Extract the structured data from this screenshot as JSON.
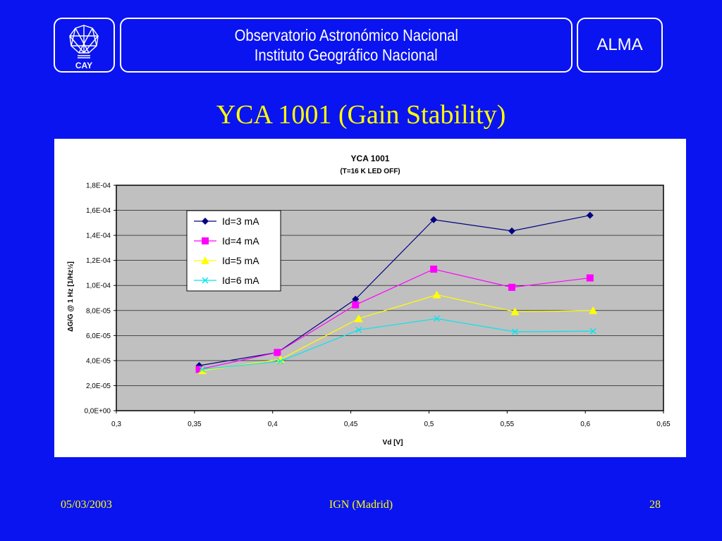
{
  "header": {
    "logo_text": "CAY",
    "line1": "Observatorio Astronómico Nacional",
    "line2": "Instituto Geográfico Nacional",
    "right_label": "ALMA"
  },
  "slide_title": "YCA 1001 (Gain Stability)",
  "footer": {
    "date": "05/03/2003",
    "center": "IGN (Madrid)",
    "page": "28"
  },
  "colors": {
    "background": "#0a14f0",
    "title": "#ffff00",
    "plot_area": "#c0c0c0"
  },
  "chart_data": {
    "type": "line",
    "title": "YCA 1001",
    "subtitle": "(T=16 K   LED OFF)",
    "xlabel": "Vd [V]",
    "ylabel": "ΔG/G @ 1 Hz [1/Hz½]",
    "xlim": [
      0.3,
      0.65
    ],
    "ylim": [
      0,
      0.00018
    ],
    "x_ticks": [
      0.3,
      0.35,
      0.4,
      0.45,
      0.5,
      0.55,
      0.6,
      0.65
    ],
    "x_tick_labels": [
      "0,3",
      "0,35",
      "0,4",
      "0,45",
      "0,5",
      "0,55",
      "0,6",
      "0,65"
    ],
    "y_ticks": [
      0,
      2e-05,
      4e-05,
      6e-05,
      8e-05,
      0.0001,
      0.00012,
      0.00014,
      0.00016,
      0.00018
    ],
    "y_tick_labels": [
      "0,0E+00",
      "2,0E-05",
      "4,0E-05",
      "6,0E-05",
      "8,0E-05",
      "1,0E-04",
      "1,2E-04",
      "1,4E-04",
      "1,6E-04",
      "1,8E-04"
    ],
    "grid": true,
    "legend_position": "top-left inside plot",
    "series": [
      {
        "name": "Id=3 mA",
        "color": "#000080",
        "marker": "diamond",
        "x": [
          0.353,
          0.403,
          0.453,
          0.503,
          0.553,
          0.603
        ],
        "y": [
          3.6e-05,
          4.65e-05,
          8.9e-05,
          0.0001525,
          0.0001435,
          0.000156
        ]
      },
      {
        "name": "Id=4 mA",
        "color": "#ff00ff",
        "marker": "square",
        "x": [
          0.353,
          0.403,
          0.453,
          0.503,
          0.553,
          0.603
        ],
        "y": [
          3.3e-05,
          4.65e-05,
          8.45e-05,
          0.000113,
          9.85e-05,
          0.000106
        ]
      },
      {
        "name": "Id=5 mA",
        "color": "#ffff00",
        "marker": "triangle",
        "x": [
          0.355,
          0.405,
          0.455,
          0.505,
          0.555,
          0.605
        ],
        "y": [
          3.2e-05,
          4.1e-05,
          7.35e-05,
          9.25e-05,
          7.9e-05,
          8e-05
        ]
      },
      {
        "name": "Id=6 mA",
        "color": "#00e5ee",
        "marker": "x",
        "x": [
          0.355,
          0.405,
          0.455,
          0.505,
          0.555,
          0.605
        ],
        "y": [
          3.3e-05,
          3.95e-05,
          6.45e-05,
          7.35e-05,
          6.3e-05,
          6.35e-05
        ]
      }
    ]
  }
}
